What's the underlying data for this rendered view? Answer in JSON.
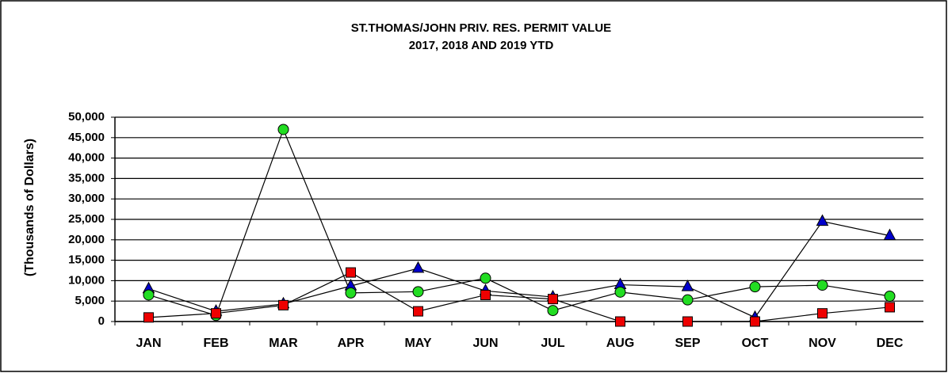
{
  "chart_data": {
    "type": "line",
    "title": "ST.THOMAS/JOHN PRIV. RES.  PERMIT VALUE",
    "subtitle": "2017, 2018 AND 2019 YTD",
    "y_label": "(Thousands of Dollars)",
    "categories": [
      "JAN",
      "FEB",
      "MAR",
      "APR",
      "MAY",
      "JUN",
      "JUL",
      "AUG",
      "SEP",
      "OCT",
      "NOV",
      "DEC"
    ],
    "series": [
      {
        "color": "#0000cc",
        "marker": "triangle",
        "values": [
          8000,
          2500,
          4300,
          8700,
          13000,
          7500,
          6000,
          9000,
          8500,
          1000,
          24500,
          21000
        ]
      },
      {
        "color": "#22dd22",
        "marker": "circle",
        "values": [
          6500,
          1500,
          47000,
          7000,
          7300,
          10600,
          2700,
          7200,
          5300,
          8500,
          8900,
          6200
        ]
      },
      {
        "color": "#ee0000",
        "marker": "square",
        "values": [
          1000,
          2000,
          4000,
          12000,
          2500,
          6500,
          5500,
          0,
          0,
          0,
          2000,
          3500
        ]
      }
    ],
    "ylim": [
      0,
      50000
    ],
    "yticks": [
      0,
      {
        "value": 5000,
        "label": "5,000"
      },
      {
        "value": 10000,
        "label": "10,000"
      },
      {
        "value": 15000,
        "label": "15,000"
      },
      {
        "value": 20000,
        "label": "20,000"
      },
      {
        "value": 25000,
        "label": "25,000"
      },
      {
        "value": 30000,
        "label": "30,000"
      },
      {
        "value": 35000,
        "label": "35,000"
      },
      {
        "value": 40000,
        "label": "40,000"
      },
      {
        "value": 45000,
        "label": "45,000"
      },
      {
        "value": 50000,
        "label": "50,000"
      }
    ],
    "grid": true
  }
}
